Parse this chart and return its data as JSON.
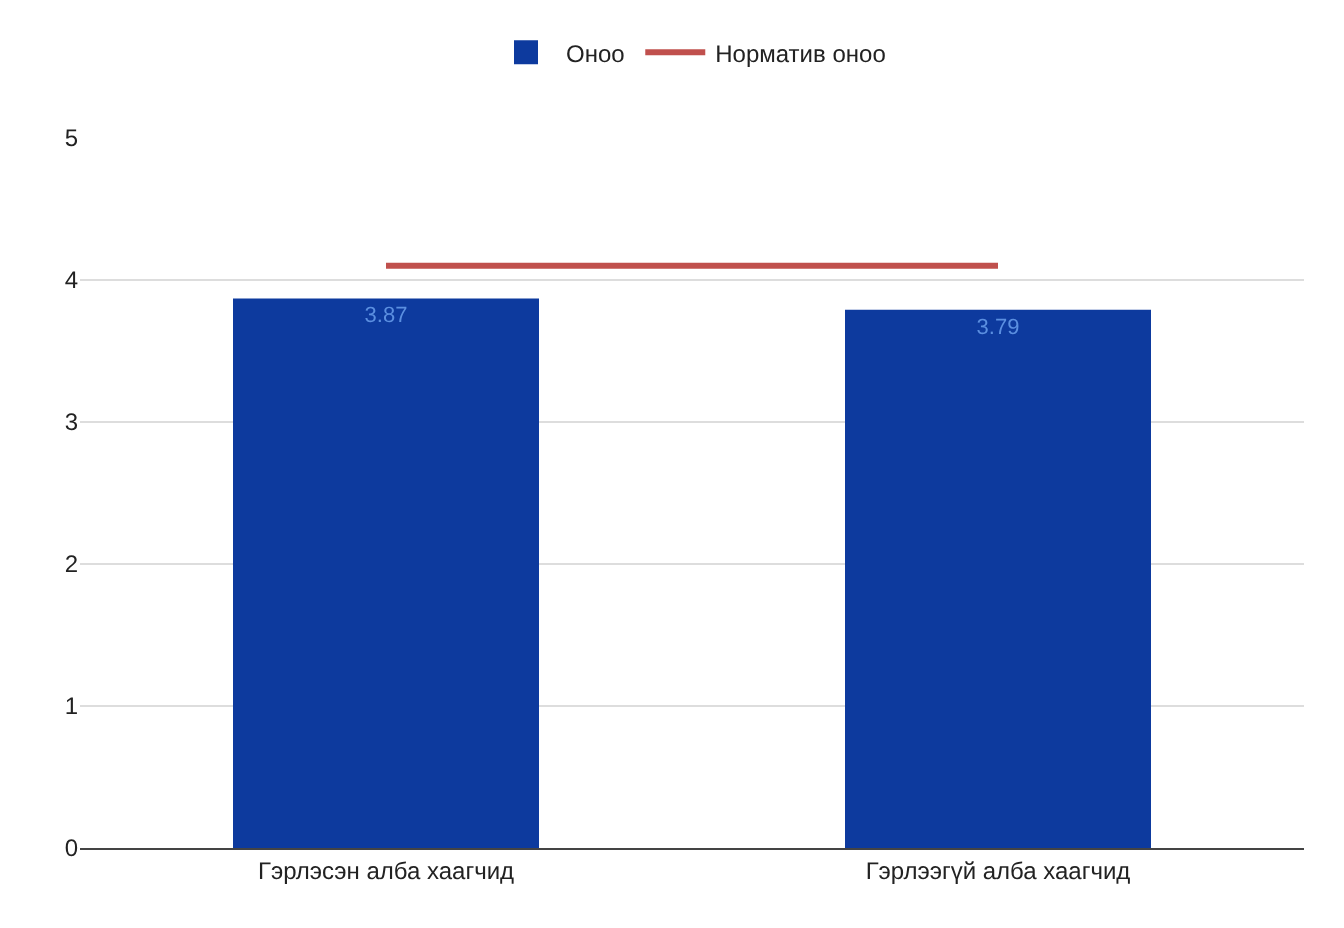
{
  "chart_data": {
    "type": "bar",
    "categories": [
      "Гэрлэсэн алба хаагчид",
      "Гэрлээгүй алба хаагчид"
    ],
    "series": [
      {
        "name": "Оноо",
        "color": "#0d3a9e",
        "values": [
          3.87,
          3.79
        ],
        "value_labels": [
          "3.87",
          "3.79"
        ]
      },
      {
        "name": "Норматив оноо",
        "type": "line",
        "color": "#c0504d",
        "values": [
          4.1,
          4.1
        ]
      }
    ],
    "ylim": [
      0,
      5
    ],
    "yticks": [
      0,
      1,
      2,
      3,
      4,
      5
    ],
    "grid": "y",
    "legend": "top",
    "marker": "none"
  }
}
